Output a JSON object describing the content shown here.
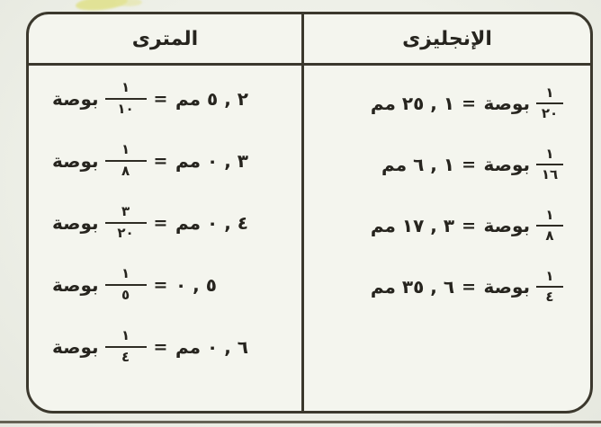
{
  "table": {
    "headers": {
      "metric": "المترى",
      "english": "الإنجليزى"
    },
    "english_rows": [
      {
        "fraction": {
          "num": "١",
          "den": "٢٠"
        },
        "inch_label": "بوصة",
        "equals": "=",
        "value": "١ , ٢٥",
        "mm_label": "مم"
      },
      {
        "fraction": {
          "num": "١",
          "den": "١٦"
        },
        "inch_label": "بوصة",
        "equals": "=",
        "value": "١ , ٦",
        "mm_label": "مم"
      },
      {
        "fraction": {
          "num": "١",
          "den": "٨"
        },
        "inch_label": "بوصة",
        "equals": "=",
        "value": "٣ , ١٧",
        "mm_label": "مم"
      },
      {
        "fraction": {
          "num": "١",
          "den": "٤"
        },
        "inch_label": "بوصة",
        "equals": "=",
        "value": "٦ , ٣٥",
        "mm_label": "مم"
      }
    ],
    "metric_rows": [
      {
        "value": "٢ , ٥",
        "mm_label": "مم",
        "equals": "=",
        "fraction": {
          "num": "١",
          "den": "١٠"
        },
        "inch_label": "بوصة"
      },
      {
        "value": "٣ , ٠",
        "mm_label": "مم",
        "equals": "=",
        "fraction": {
          "num": "١",
          "den": "٨"
        },
        "inch_label": "بوصة"
      },
      {
        "value": "٤ , ٠",
        "mm_label": "مم",
        "equals": "=",
        "fraction": {
          "num": "٣",
          "den": "٢٠"
        },
        "inch_label": "بوصة"
      },
      {
        "value": "٥ , ٠",
        "mm_label": "",
        "equals": "=",
        "fraction": {
          "num": "١",
          "den": "٥"
        },
        "inch_label": "بوصة"
      },
      {
        "value": "٦ , ٠",
        "mm_label": "مم",
        "equals": "=",
        "fraction": {
          "num": "١",
          "den": "٤"
        },
        "inch_label": "بوصة"
      }
    ]
  },
  "colors": {
    "paper": "#eef0e8",
    "table_background": "#f4f5ee",
    "ink": "#26241e",
    "border": "#3b382d",
    "smudge_yellow": "#dfe083"
  }
}
